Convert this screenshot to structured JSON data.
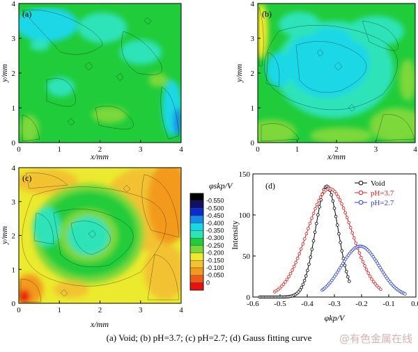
{
  "caption": "(a) Void; (b)   pH=3.7; (c) pH=2.7; (d) Gauss fitting curve",
  "watermark": "@有色金属在线",
  "colors": {
    "frame": "#000000",
    "void": "#000000",
    "ph37": "#e41a1c",
    "ph27": "#2a3cd6"
  },
  "maps": [
    {
      "label": "(a)",
      "xlabel": "x/mm",
      "ylabel": "y/mm",
      "xticks": [
        "0",
        "1",
        "2",
        "3",
        "4"
      ],
      "yticks": [
        "0",
        "1",
        "2",
        "3",
        "4"
      ],
      "pattern": "uniform"
    },
    {
      "label": "(b)",
      "xlabel": "x/mm",
      "ylabel": "y/mm",
      "xticks": [
        "0",
        "1",
        "2",
        "3",
        "4"
      ],
      "yticks": [
        "0",
        "1",
        "2",
        "3",
        "4"
      ],
      "pattern": "center-low"
    },
    {
      "label": "(c)",
      "xlabel": "x/mm",
      "ylabel": "y/mm",
      "xticks": [
        "0",
        "1",
        "2",
        "3",
        "4"
      ],
      "yticks": [
        "0",
        "1",
        "2",
        "3",
        "4"
      ],
      "pattern": "ring"
    }
  ],
  "colorbar": {
    "title": "φskp/V",
    "levels": [
      "-0.550",
      "-0.500",
      "-0.450",
      "-0.400",
      "-0.350",
      "-0.300",
      "-0.250",
      "-0.200",
      "-0.150",
      "-0.100",
      "-0.050",
      "0"
    ],
    "colors": [
      "#000000",
      "#10106a",
      "#0a2ccc",
      "#168ce8",
      "#1ad7e6",
      "#2fe3b8",
      "#20cc3a",
      "#7bd83a",
      "#ecea2e",
      "#f2c233",
      "#f39a1e",
      "#ea5a1a",
      "#e81010"
    ]
  },
  "chart_data": {
    "type": "line",
    "label": "(d)",
    "xlabel": "φkp/V",
    "ylabel": "Intensity",
    "xlim": [
      -0.6,
      0
    ],
    "ylim": [
      0,
      150
    ],
    "xticks": [
      -0.6,
      -0.5,
      -0.4,
      -0.3,
      -0.2,
      -0.1,
      0.0
    ],
    "xtick_labels": [
      "-0.6",
      "-0.5",
      "-0.4",
      "-0.3",
      "-0.2",
      "-0.1",
      "0.0"
    ],
    "yticks": [
      0,
      50,
      100,
      150
    ],
    "ytick_labels": [
      "0",
      "50",
      "100",
      "150"
    ],
    "legend_position": "top-right",
    "series": [
      {
        "name": "Void",
        "color": "#000000",
        "peak": 135,
        "center": -0.328,
        "sigma": 0.042,
        "x_start": -0.575,
        "x_end": -0.245
      },
      {
        "name": "pH=3.7",
        "color": "#e41a1c",
        "peak": 132,
        "center": -0.318,
        "sigma": 0.082,
        "x_start": -0.52,
        "x_end": -0.13
      },
      {
        "name": "pH=2.7",
        "color": "#2a3cd6",
        "peak": 62,
        "center": -0.205,
        "sigma": 0.07,
        "x_start": -0.345,
        "x_end": -0.04
      }
    ]
  }
}
